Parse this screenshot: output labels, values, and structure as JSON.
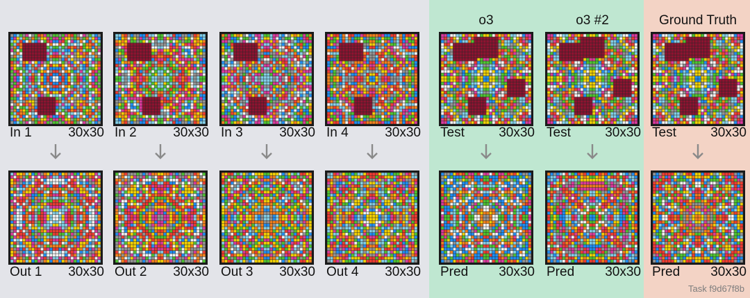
{
  "columns": [
    {
      "id": "pair1",
      "top_label": "In 1",
      "top_size": "30x30",
      "bottom_label": "Out 1",
      "bottom_size": "30x30",
      "seed_in": 11,
      "seed_out": 12
    },
    {
      "id": "pair2",
      "top_label": "In 2",
      "top_size": "30x30",
      "bottom_label": "Out 2",
      "bottom_size": "30x30",
      "seed_in": 21,
      "seed_out": 22
    },
    {
      "id": "pair3",
      "top_label": "In 3",
      "top_size": "30x30",
      "bottom_label": "Out 3",
      "bottom_size": "30x30",
      "seed_in": 31,
      "seed_out": 32
    },
    {
      "id": "pair4",
      "top_label": "In 4",
      "top_size": "30x30",
      "bottom_label": "Out 4",
      "bottom_size": "30x30",
      "seed_in": 41,
      "seed_out": 42
    },
    {
      "id": "o3",
      "title": "o3",
      "top_label": "Test",
      "top_size": "30x30",
      "bottom_label": "Pred",
      "bottom_size": "30x30",
      "seed_in": 51,
      "seed_out": 52
    },
    {
      "id": "o3-2",
      "title": "o3 #2",
      "top_label": "Test",
      "top_size": "30x30",
      "bottom_label": "Pred",
      "bottom_size": "30x30",
      "seed_in": 51,
      "seed_out": 62
    },
    {
      "id": "ground-truth",
      "title": "Ground Truth",
      "top_label": "Test",
      "top_size": "30x30",
      "bottom_label": "Pred",
      "bottom_size": "30x30",
      "seed_in": 51,
      "seed_out": 72
    }
  ],
  "footer": {
    "task_id": "Task f9d67f8b"
  },
  "palette": [
    "#ffffff",
    "#1e93ff",
    "#f93c31",
    "#4fcc30",
    "#ffdc00",
    "#999999",
    "#e53aa3",
    "#ff851b",
    "#87d8f1",
    "#921231"
  ],
  "colors": {
    "panel_bg": "#e3e4e9",
    "o3_panel": "#bfe7d1",
    "ground_truth_panel": "#f3d3c5",
    "arrow": "#8a8a8a",
    "grid_border": "#1a1a1a"
  }
}
